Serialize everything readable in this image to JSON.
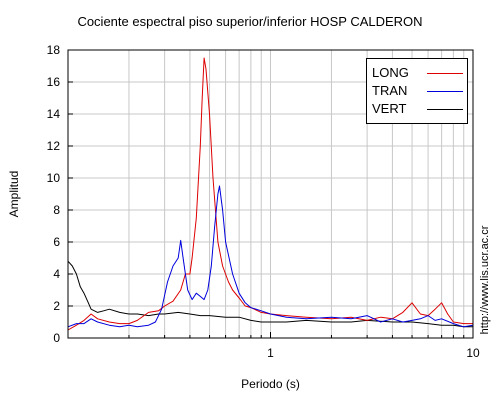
{
  "chart_data": {
    "type": "line",
    "title": "Cociente espectral piso superior/inferior  HOSP CALDERON",
    "xlabel": "Periodo (s)",
    "ylabel": "Amplitud",
    "xscale": "log",
    "xlim": [
      0.1,
      10
    ],
    "ylim": [
      0,
      18
    ],
    "x_tick_labels": [
      {
        "value": 1,
        "label": "1"
      },
      {
        "value": 10,
        "label": "10"
      }
    ],
    "y_ticks": [
      0,
      2,
      4,
      6,
      8,
      10,
      12,
      14,
      16,
      18
    ],
    "grid": true,
    "legend_position": "top-right",
    "series": [
      {
        "name": "LONG",
        "color": "#dd0000",
        "points": [
          [
            0.1,
            0.5
          ],
          [
            0.11,
            0.8
          ],
          [
            0.12,
            1.1
          ],
          [
            0.13,
            1.5
          ],
          [
            0.14,
            1.2
          ],
          [
            0.16,
            1.0
          ],
          [
            0.18,
            0.9
          ],
          [
            0.2,
            0.9
          ],
          [
            0.22,
            1.1
          ],
          [
            0.25,
            1.6
          ],
          [
            0.28,
            1.7
          ],
          [
            0.3,
            2.0
          ],
          [
            0.33,
            2.3
          ],
          [
            0.36,
            3.0
          ],
          [
            0.38,
            4.0
          ],
          [
            0.4,
            4.0
          ],
          [
            0.41,
            5.0
          ],
          [
            0.43,
            7.5
          ],
          [
            0.45,
            12.0
          ],
          [
            0.46,
            15.0
          ],
          [
            0.47,
            17.5
          ],
          [
            0.48,
            16.8
          ],
          [
            0.5,
            14.0
          ],
          [
            0.52,
            10.0
          ],
          [
            0.55,
            6.0
          ],
          [
            0.58,
            4.5
          ],
          [
            0.62,
            3.5
          ],
          [
            0.65,
            3.0
          ],
          [
            0.7,
            2.5
          ],
          [
            0.75,
            2.0
          ],
          [
            0.8,
            1.9
          ],
          [
            0.9,
            1.6
          ],
          [
            1.0,
            1.5
          ],
          [
            1.2,
            1.4
          ],
          [
            1.5,
            1.3
          ],
          [
            2.0,
            1.2
          ],
          [
            2.5,
            1.3
          ],
          [
            3.0,
            1.1
          ],
          [
            3.5,
            1.3
          ],
          [
            4.0,
            1.2
          ],
          [
            4.5,
            1.6
          ],
          [
            5.0,
            2.2
          ],
          [
            5.5,
            1.5
          ],
          [
            6.0,
            1.4
          ],
          [
            6.5,
            1.8
          ],
          [
            7.0,
            2.2
          ],
          [
            7.5,
            1.5
          ],
          [
            8.0,
            1.0
          ],
          [
            9.0,
            0.9
          ],
          [
            10.0,
            0.9
          ]
        ]
      },
      {
        "name": "TRAN",
        "color": "#0000dd",
        "points": [
          [
            0.1,
            0.7
          ],
          [
            0.11,
            0.9
          ],
          [
            0.12,
            0.9
          ],
          [
            0.13,
            1.2
          ],
          [
            0.14,
            1.0
          ],
          [
            0.16,
            0.8
          ],
          [
            0.18,
            0.7
          ],
          [
            0.2,
            0.8
          ],
          [
            0.22,
            0.7
          ],
          [
            0.25,
            0.8
          ],
          [
            0.27,
            1.0
          ],
          [
            0.29,
            1.8
          ],
          [
            0.31,
            3.5
          ],
          [
            0.33,
            4.5
          ],
          [
            0.35,
            5.0
          ],
          [
            0.36,
            6.1
          ],
          [
            0.37,
            5.0
          ],
          [
            0.39,
            3.0
          ],
          [
            0.41,
            2.4
          ],
          [
            0.43,
            2.8
          ],
          [
            0.45,
            2.6
          ],
          [
            0.47,
            2.4
          ],
          [
            0.49,
            3.0
          ],
          [
            0.51,
            4.5
          ],
          [
            0.53,
            7.0
          ],
          [
            0.55,
            9.0
          ],
          [
            0.56,
            9.5
          ],
          [
            0.58,
            8.0
          ],
          [
            0.6,
            6.0
          ],
          [
            0.65,
            4.0
          ],
          [
            0.7,
            2.8
          ],
          [
            0.75,
            2.2
          ],
          [
            0.8,
            1.9
          ],
          [
            0.9,
            1.7
          ],
          [
            1.0,
            1.5
          ],
          [
            1.2,
            1.3
          ],
          [
            1.5,
            1.2
          ],
          [
            2.0,
            1.3
          ],
          [
            2.5,
            1.2
          ],
          [
            3.0,
            1.4
          ],
          [
            3.5,
            1.0
          ],
          [
            4.0,
            1.2
          ],
          [
            4.5,
            1.0
          ],
          [
            5.0,
            1.1
          ],
          [
            5.5,
            1.2
          ],
          [
            6.0,
            1.4
          ],
          [
            6.5,
            1.1
          ],
          [
            7.0,
            1.2
          ],
          [
            8.0,
            0.9
          ],
          [
            9.0,
            0.7
          ],
          [
            10.0,
            0.8
          ]
        ]
      },
      {
        "name": "VERT",
        "color": "#000000",
        "points": [
          [
            0.1,
            4.8
          ],
          [
            0.105,
            4.5
          ],
          [
            0.11,
            4.0
          ],
          [
            0.115,
            3.2
          ],
          [
            0.12,
            2.8
          ],
          [
            0.125,
            2.3
          ],
          [
            0.13,
            1.8
          ],
          [
            0.14,
            1.6
          ],
          [
            0.15,
            1.7
          ],
          [
            0.16,
            1.8
          ],
          [
            0.18,
            1.6
          ],
          [
            0.2,
            1.5
          ],
          [
            0.22,
            1.5
          ],
          [
            0.25,
            1.4
          ],
          [
            0.28,
            1.5
          ],
          [
            0.3,
            1.5
          ],
          [
            0.35,
            1.6
          ],
          [
            0.4,
            1.5
          ],
          [
            0.45,
            1.4
          ],
          [
            0.5,
            1.4
          ],
          [
            0.6,
            1.3
          ],
          [
            0.7,
            1.3
          ],
          [
            0.8,
            1.1
          ],
          [
            0.9,
            1.0
          ],
          [
            1.0,
            1.0
          ],
          [
            1.2,
            1.0
          ],
          [
            1.5,
            1.1
          ],
          [
            2.0,
            1.0
          ],
          [
            2.5,
            1.0
          ],
          [
            3.0,
            1.1
          ],
          [
            4.0,
            1.0
          ],
          [
            5.0,
            1.0
          ],
          [
            6.0,
            0.9
          ],
          [
            7.0,
            0.8
          ],
          [
            8.0,
            0.8
          ],
          [
            9.0,
            0.7
          ],
          [
            10.0,
            0.7
          ]
        ]
      }
    ]
  },
  "watermark": "http://www.lis.ucr.ac.cr"
}
